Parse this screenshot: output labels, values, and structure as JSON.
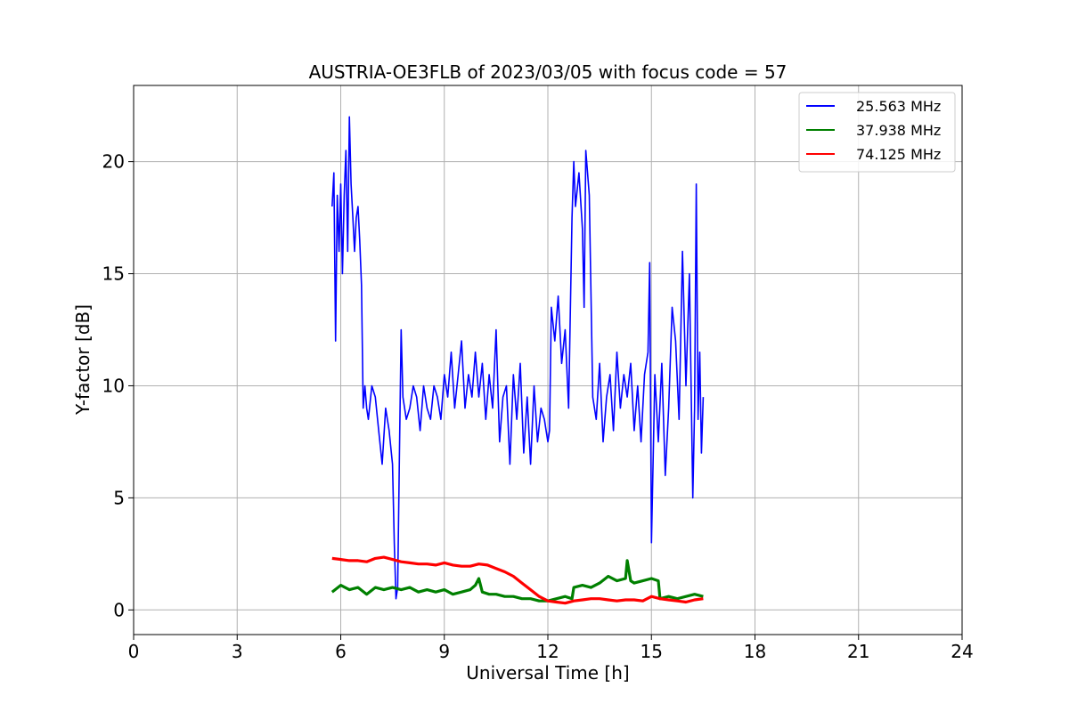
{
  "chart_data": {
    "type": "line",
    "title": "AUSTRIA-OE3FLB of 2023/03/05 with focus code = 57",
    "xlabel": "Universal Time [h]",
    "ylabel": "Y-factor [dB]",
    "xlim": [
      0,
      24
    ],
    "ylim": [
      -1.1,
      23.4
    ],
    "xticks": [
      0,
      3,
      6,
      9,
      12,
      15,
      18,
      21,
      24
    ],
    "yticks": [
      0,
      5,
      10,
      15,
      20
    ],
    "grid": true,
    "legend_position": "top-right",
    "series": [
      {
        "name": "25.563 MHz",
        "color": "#0000ff",
        "x": [
          5.75,
          5.8,
          5.85,
          5.9,
          5.95,
          6.0,
          6.05,
          6.1,
          6.15,
          6.2,
          6.25,
          6.3,
          6.35,
          6.4,
          6.45,
          6.5,
          6.55,
          6.6,
          6.65,
          6.7,
          6.75,
          6.8,
          6.9,
          7.0,
          7.1,
          7.2,
          7.3,
          7.4,
          7.5,
          7.55,
          7.6,
          7.65,
          7.7,
          7.75,
          7.8,
          7.9,
          8.0,
          8.1,
          8.2,
          8.3,
          8.4,
          8.5,
          8.6,
          8.7,
          8.8,
          8.9,
          9.0,
          9.1,
          9.2,
          9.3,
          9.4,
          9.5,
          9.6,
          9.7,
          9.8,
          9.9,
          10.0,
          10.1,
          10.2,
          10.3,
          10.4,
          10.5,
          10.6,
          10.7,
          10.8,
          10.9,
          11.0,
          11.1,
          11.2,
          11.3,
          11.4,
          11.5,
          11.6,
          11.7,
          11.8,
          11.9,
          12.0,
          12.05,
          12.1,
          12.2,
          12.3,
          12.4,
          12.5,
          12.6,
          12.7,
          12.75,
          12.8,
          12.9,
          13.0,
          13.05,
          13.1,
          13.2,
          13.3,
          13.4,
          13.5,
          13.6,
          13.7,
          13.8,
          13.9,
          14.0,
          14.1,
          14.2,
          14.3,
          14.4,
          14.5,
          14.6,
          14.7,
          14.8,
          14.9,
          14.95,
          15.0,
          15.1,
          15.2,
          15.3,
          15.4,
          15.5,
          15.6,
          15.7,
          15.8,
          15.9,
          16.0,
          16.1,
          16.2,
          16.25,
          16.3,
          16.35,
          16.4,
          16.45,
          16.5
        ],
        "values": [
          18.0,
          19.5,
          12.0,
          18.5,
          16.0,
          19.0,
          15.0,
          18.5,
          20.5,
          16.0,
          22.0,
          19.0,
          17.5,
          16.0,
          17.5,
          18.0,
          16.5,
          14.5,
          9.0,
          10.0,
          9.0,
          8.5,
          10.0,
          9.5,
          8.0,
          6.5,
          9.0,
          8.0,
          6.5,
          3.0,
          0.5,
          1.0,
          7.0,
          12.5,
          9.5,
          8.5,
          9.0,
          10.0,
          9.5,
          8.0,
          10.0,
          9.0,
          8.5,
          10.0,
          9.5,
          8.5,
          10.5,
          9.5,
          11.5,
          9.0,
          10.5,
          12.0,
          9.0,
          10.5,
          9.5,
          11.5,
          9.5,
          11.0,
          8.5,
          10.5,
          9.0,
          12.5,
          7.5,
          9.5,
          10.0,
          6.5,
          10.5,
          8.5,
          11.0,
          7.0,
          9.5,
          6.5,
          10.0,
          7.5,
          9.0,
          8.5,
          7.5,
          8.0,
          13.5,
          12.0,
          14.0,
          11.0,
          12.5,
          9.0,
          17.5,
          20.0,
          18.0,
          19.5,
          17.0,
          13.5,
          20.5,
          18.5,
          9.5,
          8.5,
          11.0,
          7.5,
          9.5,
          10.5,
          8.0,
          11.5,
          9.0,
          10.5,
          9.5,
          11.0,
          8.0,
          10.0,
          7.5,
          10.5,
          11.5,
          15.5,
          3.0,
          10.5,
          7.5,
          11.0,
          6.0,
          9.0,
          13.5,
          12.0,
          8.5,
          16.0,
          10.0,
          15.0,
          5.0,
          9.0,
          19.0,
          8.5,
          11.5,
          7.0,
          9.5
        ]
      },
      {
        "name": "37.938 MHz",
        "color": "#008000",
        "x": [
          5.75,
          6.0,
          6.25,
          6.5,
          6.75,
          7.0,
          7.25,
          7.5,
          7.75,
          8.0,
          8.25,
          8.5,
          8.75,
          9.0,
          9.25,
          9.5,
          9.75,
          9.9,
          10.0,
          10.1,
          10.3,
          10.5,
          10.75,
          11.0,
          11.25,
          11.5,
          11.75,
          12.0,
          12.25,
          12.5,
          12.7,
          12.75,
          13.0,
          13.25,
          13.5,
          13.75,
          14.0,
          14.25,
          14.3,
          14.4,
          14.5,
          14.75,
          15.0,
          15.2,
          15.25,
          15.5,
          15.75,
          16.0,
          16.25,
          16.5
        ],
        "values": [
          0.8,
          1.1,
          0.9,
          1.0,
          0.7,
          1.0,
          0.9,
          1.0,
          0.9,
          1.0,
          0.8,
          0.9,
          0.8,
          0.9,
          0.7,
          0.8,
          0.9,
          1.1,
          1.4,
          0.8,
          0.7,
          0.7,
          0.6,
          0.6,
          0.5,
          0.5,
          0.4,
          0.4,
          0.5,
          0.6,
          0.5,
          1.0,
          1.1,
          1.0,
          1.2,
          1.5,
          1.3,
          1.4,
          2.2,
          1.3,
          1.2,
          1.3,
          1.4,
          1.3,
          0.5,
          0.6,
          0.5,
          0.6,
          0.7,
          0.6
        ]
      },
      {
        "name": "74.125 MHz",
        "color": "#ff0000",
        "x": [
          5.75,
          6.0,
          6.25,
          6.5,
          6.75,
          7.0,
          7.25,
          7.5,
          7.75,
          8.0,
          8.25,
          8.5,
          8.75,
          9.0,
          9.25,
          9.5,
          9.75,
          10.0,
          10.25,
          10.5,
          10.75,
          11.0,
          11.25,
          11.5,
          11.75,
          12.0,
          12.25,
          12.5,
          12.75,
          13.0,
          13.25,
          13.5,
          13.75,
          14.0,
          14.25,
          14.5,
          14.75,
          15.0,
          15.25,
          15.5,
          15.75,
          16.0,
          16.25,
          16.5
        ],
        "values": [
          2.3,
          2.25,
          2.2,
          2.2,
          2.15,
          2.3,
          2.35,
          2.25,
          2.15,
          2.1,
          2.05,
          2.05,
          2.0,
          2.1,
          2.0,
          1.95,
          1.95,
          2.05,
          2.0,
          1.85,
          1.7,
          1.5,
          1.2,
          0.9,
          0.6,
          0.4,
          0.35,
          0.3,
          0.4,
          0.45,
          0.5,
          0.5,
          0.45,
          0.4,
          0.45,
          0.45,
          0.4,
          0.6,
          0.5,
          0.45,
          0.4,
          0.35,
          0.45,
          0.5
        ]
      }
    ]
  }
}
